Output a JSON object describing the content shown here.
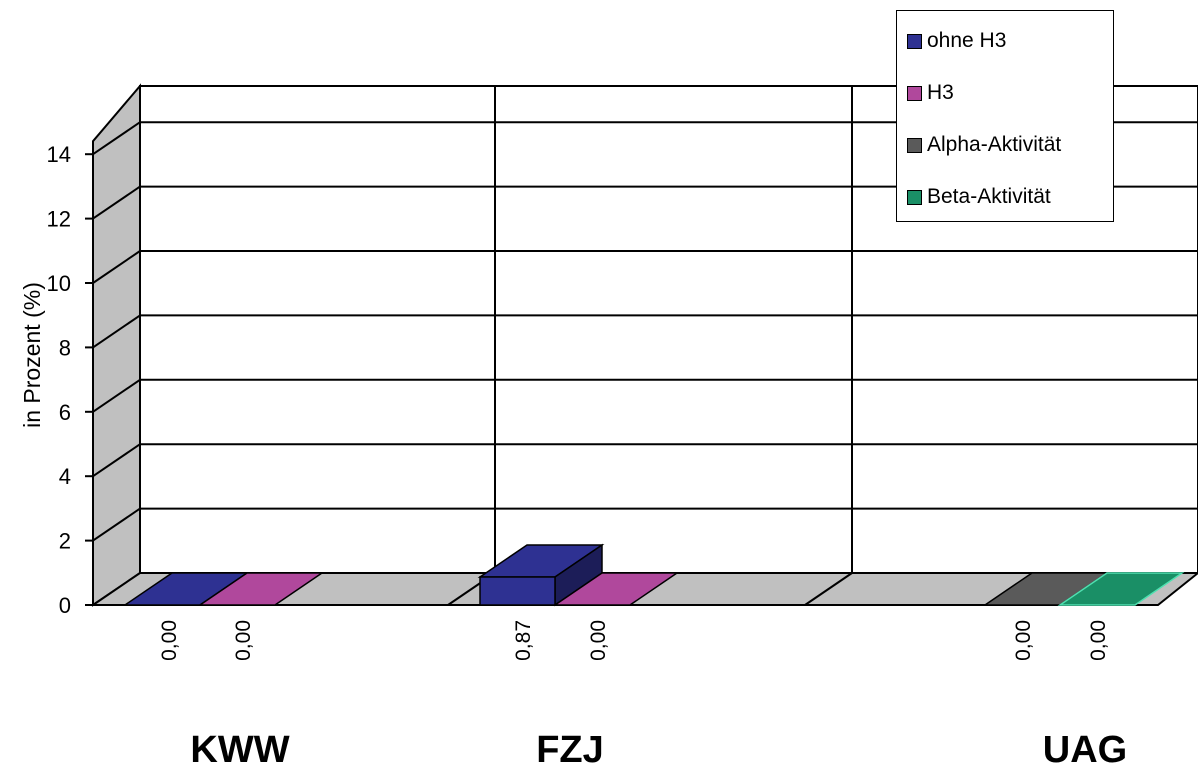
{
  "chart_data": {
    "type": "bar",
    "title": "",
    "xlabel": "",
    "ylabel": "in Prozent (%)",
    "ylim": [
      0,
      14
    ],
    "yticks": [
      "0",
      "2",
      "4",
      "6",
      "8",
      "10",
      "12",
      "14"
    ],
    "grid": true,
    "legend_position": "top-right",
    "categories": [
      "KWW",
      "FZJ",
      "UAG"
    ],
    "series": [
      {
        "name": "ohne H3",
        "color": "#2E3192",
        "values": [
          0.0,
          0.87,
          null
        ],
        "labels": [
          "0,00",
          "0,87",
          ""
        ]
      },
      {
        "name": "H3",
        "color": "#B0489C",
        "values": [
          0.0,
          0.0,
          null
        ],
        "labels": [
          "0,00",
          "0,00",
          ""
        ]
      },
      {
        "name": "Alpha-Aktivität",
        "color": "#5A5A5A",
        "values": [
          null,
          null,
          0.0
        ],
        "labels": [
          "",
          "",
          "0,00"
        ]
      },
      {
        "name": "Beta-Aktivität",
        "color": "#1A8F66",
        "values": [
          null,
          null,
          0.0
        ],
        "labels": [
          "",
          "",
          "0,00"
        ]
      }
    ]
  }
}
